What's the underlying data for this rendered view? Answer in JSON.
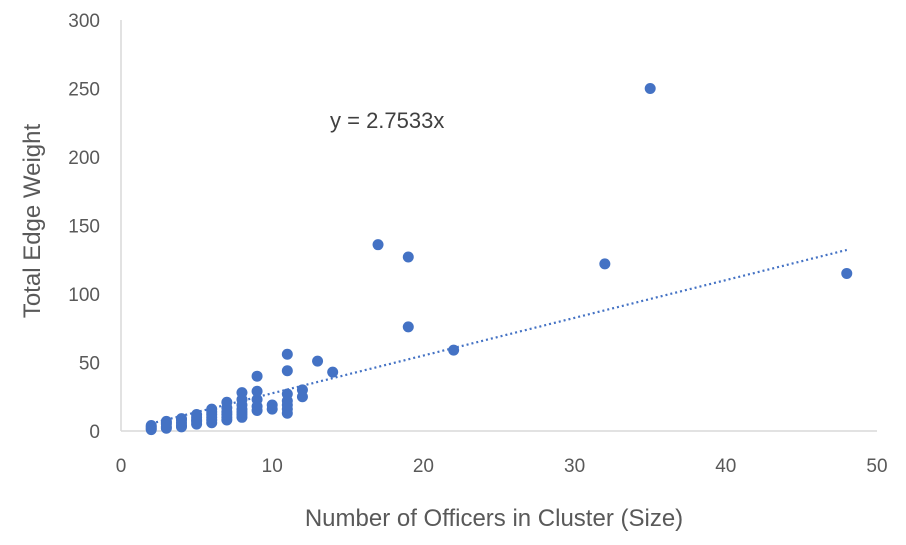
{
  "chart_data": {
    "type": "scatter",
    "title": "",
    "xlabel": "Number of Officers in Cluster (Size)",
    "ylabel": "Total Edge Weight",
    "xlim": [
      0,
      50
    ],
    "ylim": [
      0,
      300
    ],
    "xticks": [
      "0",
      "10",
      "20",
      "30",
      "40",
      "50"
    ],
    "yticks": [
      "0",
      "50",
      "100",
      "150",
      "200",
      "250",
      "300"
    ],
    "grid": false,
    "legend": "none",
    "marker_color": "#4472C4",
    "trendline": {
      "type": "linear",
      "slope": 2.7533,
      "intercept": 0,
      "x_range": [
        2,
        48
      ],
      "style": "dotted",
      "label": "y = 2.7533x"
    },
    "points": [
      [
        2,
        1
      ],
      [
        2,
        2
      ],
      [
        2,
        3
      ],
      [
        2,
        4
      ],
      [
        3,
        2
      ],
      [
        3,
        3
      ],
      [
        3,
        5
      ],
      [
        3,
        6
      ],
      [
        3,
        7
      ],
      [
        4,
        3
      ],
      [
        4,
        4
      ],
      [
        4,
        6
      ],
      [
        4,
        8
      ],
      [
        4,
        9
      ],
      [
        5,
        5
      ],
      [
        5,
        7
      ],
      [
        5,
        8
      ],
      [
        5,
        10
      ],
      [
        5,
        12
      ],
      [
        6,
        6
      ],
      [
        6,
        8
      ],
      [
        6,
        10
      ],
      [
        6,
        12
      ],
      [
        6,
        14
      ],
      [
        6,
        16
      ],
      [
        7,
        8
      ],
      [
        7,
        10
      ],
      [
        7,
        12
      ],
      [
        7,
        14
      ],
      [
        7,
        17
      ],
      [
        7,
        21
      ],
      [
        8,
        10
      ],
      [
        8,
        12
      ],
      [
        8,
        14
      ],
      [
        8,
        16
      ],
      [
        8,
        19
      ],
      [
        8,
        23
      ],
      [
        8,
        28
      ],
      [
        9,
        15
      ],
      [
        9,
        18
      ],
      [
        9,
        23
      ],
      [
        9,
        29
      ],
      [
        9,
        40
      ],
      [
        10,
        16
      ],
      [
        10,
        19
      ],
      [
        11,
        13
      ],
      [
        11,
        16
      ],
      [
        11,
        19
      ],
      [
        11,
        22
      ],
      [
        11,
        27
      ],
      [
        11,
        44
      ],
      [
        11,
        56
      ],
      [
        12,
        25
      ],
      [
        12,
        30
      ],
      [
        13,
        51
      ],
      [
        14,
        43
      ],
      [
        17,
        136
      ],
      [
        19,
        127
      ],
      [
        19,
        76
      ],
      [
        22,
        59
      ],
      [
        32,
        122
      ],
      [
        35,
        250
      ],
      [
        48,
        115
      ]
    ]
  }
}
